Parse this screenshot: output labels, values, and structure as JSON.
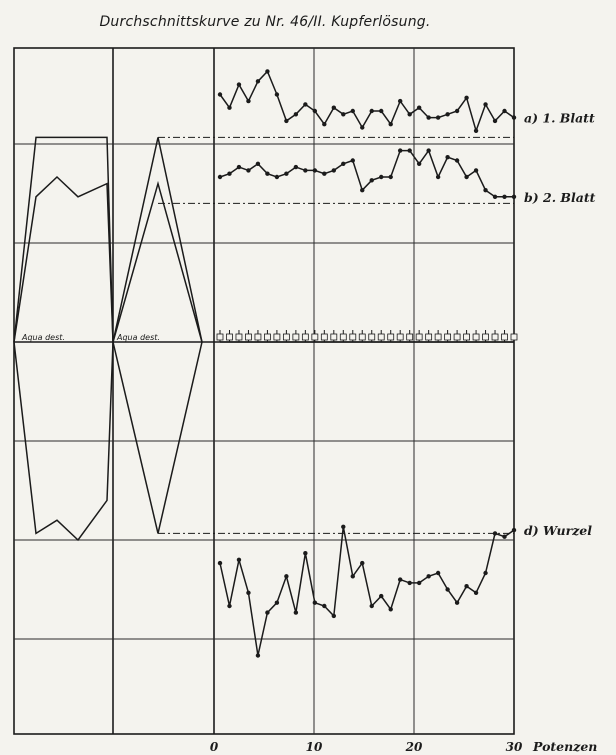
{
  "chart_data": {
    "type": "line",
    "title": "Durchschnittskurve zu Nr. 46/II. Kupferlösung.",
    "xlabel": "Potenzen",
    "x_ticks": [
      "0",
      "10",
      "20",
      "30"
    ],
    "xlim": [
      0,
      30
    ],
    "control_label": "Aqua dest.",
    "series": [
      {
        "name": "a) 1. Blatt",
        "control": [
          62,
          62,
          62,
          62
        ],
        "control_descent": [
          40,
          62,
          0
        ],
        "baseline": 62,
        "values": [
          75,
          71,
          78,
          73,
          79,
          82,
          75,
          67,
          69,
          72,
          70,
          66,
          71,
          69,
          70,
          65,
          70,
          70,
          66,
          73,
          69,
          71,
          68,
          68,
          69,
          70,
          74,
          64,
          72,
          67,
          70,
          68
        ]
      },
      {
        "name": "b) 2. Blatt",
        "control": [
          44,
          50,
          44,
          48
        ],
        "control_descent": [
          40,
          48,
          0
        ],
        "baseline": 42,
        "values": [
          50,
          51,
          53,
          52,
          54,
          51,
          50,
          51,
          53,
          52,
          52,
          51,
          52,
          54,
          55,
          46,
          49,
          50,
          50,
          58,
          58,
          54,
          58,
          50,
          56,
          55,
          50,
          52,
          46,
          44,
          44,
          44
        ]
      },
      {
        "name": "Aqua dest.",
        "values": [
          0,
          0,
          0,
          0,
          0,
          0,
          0,
          0,
          0,
          0,
          0,
          0,
          0,
          0,
          0,
          0,
          0,
          0,
          0,
          0,
          0,
          0,
          0,
          0,
          0,
          0,
          0,
          0,
          0,
          0,
          0,
          0
        ]
      },
      {
        "name": "d) Wurzel",
        "control": [
          -58,
          -54,
          -60,
          -48
        ],
        "control_descent": [
          -58,
          -48,
          0
        ],
        "baseline": -58,
        "values": [
          -67,
          -80,
          -66,
          -76,
          -95,
          -82,
          -79,
          -71,
          -82,
          -64,
          -79,
          -80,
          -83,
          -56,
          -71,
          -67,
          -80,
          -77,
          -81,
          -72,
          -73,
          -73,
          -71,
          -70,
          -75,
          -79,
          -74,
          -76,
          -70,
          -58,
          -59,
          -57
        ]
      }
    ],
    "grid": true
  }
}
